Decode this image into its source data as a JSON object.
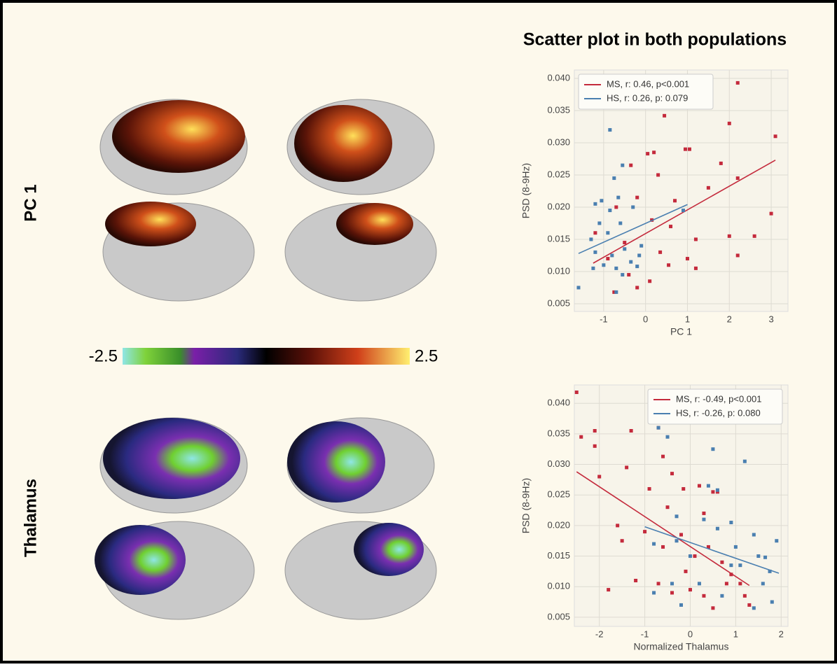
{
  "title": "Scatter plot in both populations",
  "figure": {
    "row_labels": [
      "PC 1",
      "Thalamus"
    ],
    "colorbar": {
      "min": -2.5,
      "max": 2.5
    }
  },
  "chart_data": [
    {
      "type": "scatter",
      "xlabel": "PC 1",
      "ylabel": "PSD (8-9Hz)",
      "grid": true,
      "legend": "upper left",
      "xlim": [
        -1.7,
        3.4
      ],
      "ylim": [
        0.0038,
        0.0413
      ],
      "xticks": [
        -1,
        0,
        1,
        2,
        3
      ],
      "yticks": [
        0.005,
        {
          "value": 0.01,
          "label": "0.010"
        },
        0.015,
        {
          "value": 0.02,
          "label": "0.020"
        },
        0.025,
        {
          "value": 0.03,
          "label": "0.030"
        },
        0.035,
        {
          "value": 0.04,
          "label": "0.040"
        }
      ],
      "series": [
        {
          "name": "MS, r: 0.46, p<0.001",
          "color": "#c42a3c",
          "x": [
            2.2,
            0.45,
            2.0,
            3.1,
            0.05,
            0.2,
            0.95,
            1.05,
            -0.35,
            1.8,
            2.2,
            0.3,
            1.5,
            0.7,
            -0.7,
            -0.2,
            0.15,
            0.6,
            3.0,
            2.0,
            2.6,
            1.2,
            -1.2,
            -0.5,
            0.35,
            1.2,
            2.2,
            -0.9,
            -0.4,
            0.1,
            -0.2,
            0.55,
            -0.75,
            1.0
          ],
          "values": [
            0.0393,
            0.0342,
            0.033,
            0.031,
            0.0283,
            0.0285,
            0.029,
            0.029,
            0.0265,
            0.0268,
            0.0245,
            0.025,
            0.023,
            0.021,
            0.02,
            0.0215,
            0.018,
            0.017,
            0.019,
            0.0155,
            0.0155,
            0.015,
            0.016,
            0.0145,
            0.013,
            0.0105,
            0.0125,
            0.012,
            0.0095,
            0.0085,
            0.0075,
            0.011,
            0.0068,
            0.012
          ],
          "fit_x": [
            -1.25,
            3.1
          ],
          "fit_y": [
            0.0113,
            0.0273
          ]
        },
        {
          "name": "HS, r: 0.26, p: 0.079",
          "color": "#4a7fb0",
          "x": [
            -0.85,
            -0.55,
            -0.75,
            -1.2,
            -1.05,
            -0.85,
            -0.65,
            -0.3,
            -1.1,
            -0.9,
            -0.6,
            -1.3,
            -1.2,
            -0.8,
            -0.5,
            -0.15,
            -1.0,
            -0.7,
            -0.35,
            -1.25,
            -0.55,
            -1.6,
            -0.7,
            -0.2,
            0.9,
            -0.1
          ],
          "values": [
            0.032,
            0.0265,
            0.0245,
            0.0205,
            0.021,
            0.0195,
            0.0215,
            0.02,
            0.0175,
            0.016,
            0.0175,
            0.015,
            0.013,
            0.0125,
            0.0135,
            0.0125,
            0.011,
            0.0105,
            0.0115,
            0.0105,
            0.0095,
            0.0075,
            0.0068,
            0.0108,
            0.0195,
            0.014
          ],
          "fit_x": [
            -1.6,
            1.0
          ],
          "fit_y": [
            0.0128,
            0.0204
          ]
        }
      ]
    },
    {
      "type": "scatter",
      "xlabel": "Normalized Thalamus",
      "ylabel": "PSD (8-9Hz)",
      "grid": true,
      "legend": "upper right",
      "xlim": [
        -2.55,
        2.15
      ],
      "ylim": [
        0.0035,
        0.043
      ],
      "xticks": [
        -2,
        -1,
        0,
        1,
        2
      ],
      "yticks": [
        0.005,
        {
          "value": 0.01,
          "label": "0.010"
        },
        0.015,
        {
          "value": 0.02,
          "label": "0.020"
        },
        0.025,
        {
          "value": 0.03,
          "label": "0.030"
        },
        0.035,
        {
          "value": 0.04,
          "label": "0.040"
        }
      ],
      "series": [
        {
          "name": "MS, r: -0.49, p<0.001",
          "color": "#c42a3c",
          "x": [
            -2.5,
            -2.4,
            -2.1,
            -2.1,
            -2.0,
            -1.3,
            -0.7,
            -1.4,
            -0.6,
            -0.4,
            -0.9,
            -0.15,
            -0.5,
            0.2,
            0.5,
            0.6,
            0.3,
            -1.6,
            -1.5,
            -1.0,
            -0.6,
            -0.2,
            0.1,
            0.4,
            0.7,
            -1.2,
            -0.7,
            -0.4,
            0.0,
            0.3,
            0.9,
            1.1,
            1.2,
            -1.8,
            1.3,
            0.5,
            -0.1,
            0.8
          ],
          "values": [
            0.0418,
            0.0345,
            0.0355,
            0.033,
            0.028,
            0.0355,
            0.036,
            0.0295,
            0.0313,
            0.0285,
            0.026,
            0.026,
            0.023,
            0.0265,
            0.0255,
            0.0255,
            0.022,
            0.02,
            0.0175,
            0.019,
            0.0165,
            0.0185,
            0.015,
            0.0165,
            0.014,
            0.011,
            0.0105,
            0.009,
            0.0095,
            0.0085,
            0.012,
            0.0105,
            0.0085,
            0.0095,
            0.007,
            0.0065,
            0.0125,
            0.0105
          ],
          "fit_x": [
            -2.5,
            1.3
          ],
          "fit_y": [
            0.0288,
            0.0102
          ]
        },
        {
          "name": "HS, r: -0.26, p: 0.080",
          "color": "#4a7fb0",
          "x": [
            -0.5,
            -0.7,
            0.5,
            1.2,
            0.4,
            0.6,
            -0.3,
            0.3,
            0.9,
            1.4,
            0.6,
            1.9,
            1.0,
            1.5,
            1.65,
            0.0,
            -0.8,
            -0.3,
            1.1,
            1.75,
            1.6,
            1.8,
            0.9,
            -0.8,
            -0.4,
            0.2,
            1.4,
            -0.2,
            0.7
          ],
          "values": [
            0.0345,
            0.036,
            0.0325,
            0.0305,
            0.0265,
            0.0258,
            0.0215,
            0.021,
            0.0205,
            0.0185,
            0.0195,
            0.0175,
            0.0165,
            0.015,
            0.0148,
            0.015,
            0.017,
            0.0175,
            0.0135,
            0.0125,
            0.0105,
            0.0075,
            0.0135,
            0.009,
            0.0105,
            0.0105,
            0.0065,
            0.007,
            0.0085
          ],
          "fit_x": [
            -1.0,
            1.95
          ],
          "fit_y": [
            0.0198,
            0.0122
          ]
        }
      ]
    }
  ]
}
